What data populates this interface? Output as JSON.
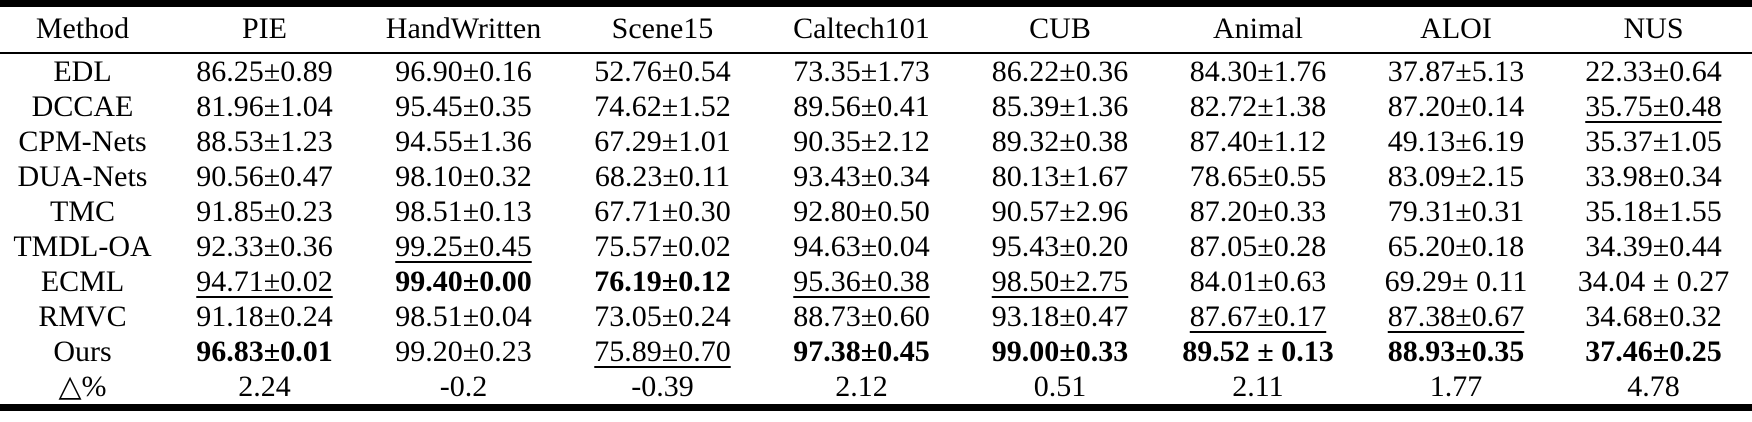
{
  "colors": {
    "text": "#000000",
    "background": "#ffffff",
    "rule": "#000000"
  },
  "table": {
    "columns": [
      "Method",
      "PIE",
      "HandWritten",
      "Scene15",
      "Caltech101",
      "CUB",
      "Animal",
      "ALOI",
      "NUS"
    ],
    "rows": [
      {
        "method": "EDL",
        "cells": [
          {
            "text": "86.25±0.89",
            "style": "normal"
          },
          {
            "text": "96.90±0.16",
            "style": "normal"
          },
          {
            "text": "52.76±0.54",
            "style": "normal"
          },
          {
            "text": "73.35±1.73",
            "style": "normal"
          },
          {
            "text": "86.22±0.36",
            "style": "normal"
          },
          {
            "text": "84.30±1.76",
            "style": "normal"
          },
          {
            "text": "37.87±5.13",
            "style": "normal"
          },
          {
            "text": "22.33±0.64",
            "style": "normal"
          }
        ]
      },
      {
        "method": "DCCAE",
        "cells": [
          {
            "text": "81.96±1.04",
            "style": "normal"
          },
          {
            "text": "95.45±0.35",
            "style": "normal"
          },
          {
            "text": "74.62±1.52",
            "style": "normal"
          },
          {
            "text": "89.56±0.41",
            "style": "normal"
          },
          {
            "text": "85.39±1.36",
            "style": "normal"
          },
          {
            "text": "82.72±1.38",
            "style": "normal"
          },
          {
            "text": "87.20±0.14",
            "style": "normal"
          },
          {
            "text": "35.75±0.48",
            "style": "underline"
          }
        ]
      },
      {
        "method": "CPM-Nets",
        "cells": [
          {
            "text": "88.53±1.23",
            "style": "normal"
          },
          {
            "text": "94.55±1.36",
            "style": "normal"
          },
          {
            "text": "67.29±1.01",
            "style": "normal"
          },
          {
            "text": "90.35±2.12",
            "style": "normal"
          },
          {
            "text": "89.32±0.38",
            "style": "normal"
          },
          {
            "text": "87.40±1.12",
            "style": "normal"
          },
          {
            "text": "49.13±6.19",
            "style": "normal"
          },
          {
            "text": "35.37±1.05",
            "style": "normal"
          }
        ]
      },
      {
        "method": "DUA-Nets",
        "cells": [
          {
            "text": "90.56±0.47",
            "style": "normal"
          },
          {
            "text": "98.10±0.32",
            "style": "normal"
          },
          {
            "text": "68.23±0.11",
            "style": "normal"
          },
          {
            "text": "93.43±0.34",
            "style": "normal"
          },
          {
            "text": "80.13±1.67",
            "style": "normal"
          },
          {
            "text": "78.65±0.55",
            "style": "normal"
          },
          {
            "text": "83.09±2.15",
            "style": "normal"
          },
          {
            "text": "33.98±0.34",
            "style": "normal"
          }
        ]
      },
      {
        "method": "TMC",
        "cells": [
          {
            "text": "91.85±0.23",
            "style": "normal"
          },
          {
            "text": "98.51±0.13",
            "style": "normal"
          },
          {
            "text": "67.71±0.30",
            "style": "normal"
          },
          {
            "text": "92.80±0.50",
            "style": "normal"
          },
          {
            "text": "90.57±2.96",
            "style": "normal"
          },
          {
            "text": "87.20±0.33",
            "style": "normal"
          },
          {
            "text": "79.31±0.31",
            "style": "normal"
          },
          {
            "text": "35.18±1.55",
            "style": "normal"
          }
        ]
      },
      {
        "method": "TMDL-OA",
        "cells": [
          {
            "text": "92.33±0.36",
            "style": "normal"
          },
          {
            "text": "99.25±0.45",
            "style": "underline"
          },
          {
            "text": "75.57±0.02",
            "style": "normal"
          },
          {
            "text": "94.63±0.04",
            "style": "normal"
          },
          {
            "text": "95.43±0.20",
            "style": "normal"
          },
          {
            "text": "87.05±0.28",
            "style": "normal"
          },
          {
            "text": "65.20±0.18",
            "style": "normal"
          },
          {
            "text": "34.39±0.44",
            "style": "normal"
          }
        ]
      },
      {
        "method": "ECML",
        "cells": [
          {
            "text": "94.71±0.02",
            "style": "underline"
          },
          {
            "text": "99.40±0.00",
            "style": "bold"
          },
          {
            "text": "76.19±0.12",
            "style": "bold"
          },
          {
            "text": "95.36±0.38",
            "style": "underline"
          },
          {
            "text": "98.50±2.75",
            "style": "underline"
          },
          {
            "text": "84.01±0.63",
            "style": "normal"
          },
          {
            "text": "69.29± 0.11",
            "style": "normal"
          },
          {
            "text": "34.04 ± 0.27",
            "style": "normal"
          }
        ]
      },
      {
        "method": "RMVC",
        "cells": [
          {
            "text": "91.18±0.24",
            "style": "normal"
          },
          {
            "text": "98.51±0.04",
            "style": "normal"
          },
          {
            "text": "73.05±0.24",
            "style": "normal"
          },
          {
            "text": "88.73±0.60",
            "style": "normal"
          },
          {
            "text": "93.18±0.47",
            "style": "normal"
          },
          {
            "text": "87.67±0.17",
            "style": "underline"
          },
          {
            "text": "87.38±0.67",
            "style": "underline"
          },
          {
            "text": "34.68±0.32",
            "style": "normal"
          }
        ]
      },
      {
        "method": "Ours",
        "cells": [
          {
            "text": "96.83±0.01",
            "style": "bold"
          },
          {
            "text": "99.20±0.23",
            "style": "normal"
          },
          {
            "text": "75.89±0.70",
            "style": "underline"
          },
          {
            "text": "97.38±0.45",
            "style": "bold"
          },
          {
            "text": "99.00±0.33",
            "style": "bold"
          },
          {
            "text": "89.52 ± 0.13",
            "style": "bold"
          },
          {
            "text": "88.93±0.35",
            "style": "bold"
          },
          {
            "text": "37.46±0.25",
            "style": "bold"
          }
        ]
      },
      {
        "method": "△%",
        "cells": [
          {
            "text": "2.24",
            "style": "normal"
          },
          {
            "text": "-0.2",
            "style": "normal"
          },
          {
            "text": "-0.39",
            "style": "normal"
          },
          {
            "text": "2.12",
            "style": "normal"
          },
          {
            "text": "0.51",
            "style": "normal"
          },
          {
            "text": "2.11",
            "style": "normal"
          },
          {
            "text": "1.77",
            "style": "normal"
          },
          {
            "text": "4.78",
            "style": "normal"
          }
        ]
      }
    ]
  }
}
